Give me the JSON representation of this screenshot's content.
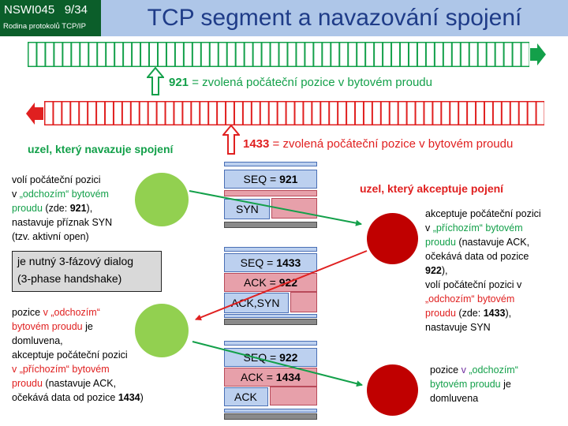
{
  "header": {
    "course": "NSWI045",
    "slide": "9/34",
    "subtitle": "Rodina protokolů TCP/IP",
    "title": "TCP segment a navazování spojení"
  },
  "streams": {
    "outgoing": {
      "seq_number": "921",
      "caption": " = zvolená počáteční pozice v bytovém proudu",
      "color": "#13a04a"
    },
    "incoming": {
      "seq_number": "1433",
      "caption": " = zvolená počáteční pozice v bytovém proudu",
      "color": "#e02020"
    }
  },
  "nodes": {
    "initiator_heading": "uzel, který navazuje spojení",
    "acceptor_heading": "uzel, který akceptuje pojení"
  },
  "left_text_1": {
    "l1": "volí počáteční pozici",
    "l2a": "v ",
    "l2b": "„odchozím“ bytovém",
    "l3a": "proudu",
    "l3b": " (zde: ",
    "l3c": "921",
    "l3d": "),",
    "l4": "nastavuje příznak SYN",
    "l5": "(tzv. aktivní open)"
  },
  "note": {
    "line1": "je nutný 3-fázový dialog",
    "line2": "(3-phase handshake)"
  },
  "right_text_1": {
    "l1": "akceptuje počáteční pozici",
    "l2a": "v ",
    "l2b": "„příchozím“ bytovém",
    "l3a": "proudu",
    "l3b": " (nastavuje ACK,",
    "l4": "očekává data od pozice",
    "l5": "922",
    "l5b": "),",
    "l6": "volí počáteční pozici v",
    "l7": "„odchozím“ bytovém",
    "l8a": "proudu",
    "l8b": " (zde: ",
    "l8c": "1433",
    "l8d": "),",
    "l9": "nastavuje SYN"
  },
  "left_text_2": {
    "l1a": "pozice ",
    "l1b": "v „odchozím“",
    "l2a": "bytovém proudu",
    "l2b": " je",
    "l3": "domluvena,",
    "l4": "akceptuje počáteční pozici",
    "l5a": "v „příchozím“ bytovém",
    "l6a": "proudu",
    "l6b": " (nastavuje ACK,",
    "l7a": "očekává data od pozice ",
    "l7b": "1434",
    "l7c": ")"
  },
  "right_text_2": {
    "l1a": "pozice ",
    "l1b": "v ",
    "l1c": "„odchozím“",
    "l2a": "bytovém proudu",
    "l2b": " je",
    "l3": "domluvena"
  },
  "segments": {
    "s1": {
      "seq_label": "SEQ = ",
      "seq_value": "921",
      "flag": "SYN"
    },
    "s2": {
      "seq_label": "SEQ = ",
      "seq_value": "1433",
      "ack_label": "ACK = ",
      "ack_value": "922",
      "flag": "ACK,SYN"
    },
    "s3": {
      "seq_label": "SEQ = ",
      "seq_value": "922",
      "ack_label": "ACK = ",
      "ack_value": "1434",
      "flag": "ACK"
    }
  },
  "colors": {
    "green": "#13a04a",
    "red": "#e02020",
    "circle_green": "#92d050",
    "circle_red": "#c00000",
    "title_blue": "#1f3c88",
    "badge_green": "#0b5e2a",
    "header_bg": "#aec6e8"
  },
  "icons": [
    "arrow-right-icon",
    "arrow-left-icon",
    "arrow-up-outline-icon"
  ]
}
